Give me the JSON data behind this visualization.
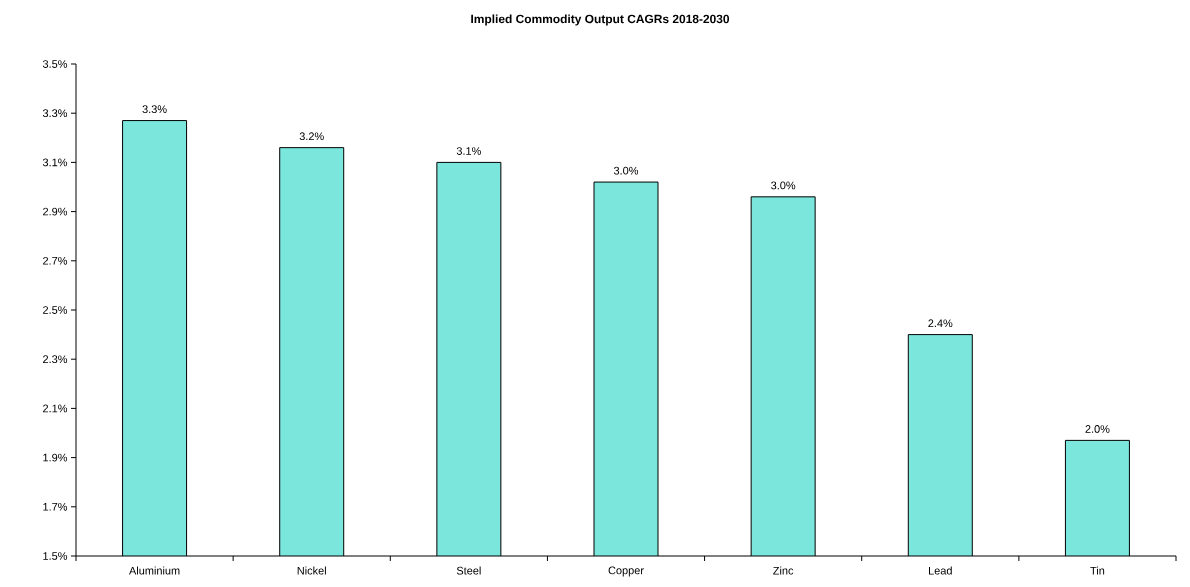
{
  "chart_data": {
    "type": "bar",
    "title": "Implied Commodity Output CAGRs 2018-2030",
    "categories": [
      "Aluminium",
      "Nickel",
      "Steel",
      "Copper",
      "Zinc",
      "Lead",
      "Tin"
    ],
    "values": [
      3.27,
      3.16,
      3.1,
      3.02,
      2.96,
      2.4,
      1.97
    ],
    "value_labels": [
      "3.3%",
      "3.2%",
      "3.1%",
      "3.0%",
      "3.0%",
      "2.4%",
      "2.0%"
    ],
    "color": "#7ae6dc",
    "ylim": [
      1.5,
      3.5
    ],
    "yticks": [
      {
        "value": 1.5,
        "label": "1.5%"
      },
      {
        "value": 1.7,
        "label": "1.7%"
      },
      {
        "value": 1.9,
        "label": "1.9%"
      },
      {
        "value": 2.1,
        "label": "2.1%"
      },
      {
        "value": 2.3,
        "label": "2.3%"
      },
      {
        "value": 2.5,
        "label": "2.5%"
      },
      {
        "value": 2.7,
        "label": "2.7%"
      },
      {
        "value": 2.9,
        "label": "2.9%"
      },
      {
        "value": 3.1,
        "label": "3.1%"
      },
      {
        "value": 3.3,
        "label": "3.3%"
      },
      {
        "value": 3.5,
        "label": "3.5%"
      }
    ],
    "grid": false
  }
}
